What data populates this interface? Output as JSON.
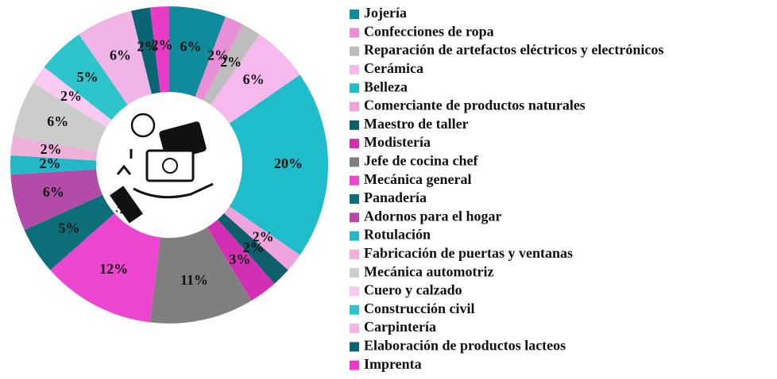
{
  "chart_data": {
    "type": "donut",
    "categories": [
      "Jojería",
      "Confecciones de ropa",
      "Reparación de artefactos eléctricos y electrónicos",
      "Cerámica",
      "Belleza",
      "Comerciante de productos naturales",
      "Maestro de taller",
      "Modistería",
      "Jefe de cocina chef",
      "Mecánica general",
      "Panadería",
      "Adornos para el hogar",
      "Rotulación",
      "Fabricación de puertas y ventanas",
      "Mecánica automotriz",
      "Cuero y calzado",
      "Construcción civil",
      "Carpintería",
      "Elaboración de productos lacteos",
      "Imprenta"
    ],
    "values": [
      6,
      2,
      2,
      6,
      20,
      2,
      2,
      3,
      11,
      12,
      5,
      6,
      2,
      2,
      6,
      2,
      5,
      6,
      2,
      2
    ],
    "value_labels": [
      "6%",
      "2%",
      "2%",
      "6%",
      "20%",
      "2%",
      "2%",
      "3%",
      "11%",
      "12%",
      "5%",
      "6%",
      "2%",
      "2%",
      "6%",
      "2%",
      "5%",
      "6%",
      "2%",
      "2%"
    ],
    "colors": [
      "#0f8b9b",
      "#e88fd8",
      "#bdbdbd",
      "#f6b9ee",
      "#1fbdcc",
      "#eea3dc",
      "#0d5f6b",
      "#d22fb4",
      "#7f7f7f",
      "#ec45d0",
      "#0b6e78",
      "#b24ca8",
      "#22b8c8",
      "#efb0d9",
      "#cccccc",
      "#f9caf2",
      "#2ec4cc",
      "#f0b5e6",
      "#0a6472",
      "#e83cc8"
    ],
    "legend": "right"
  }
}
